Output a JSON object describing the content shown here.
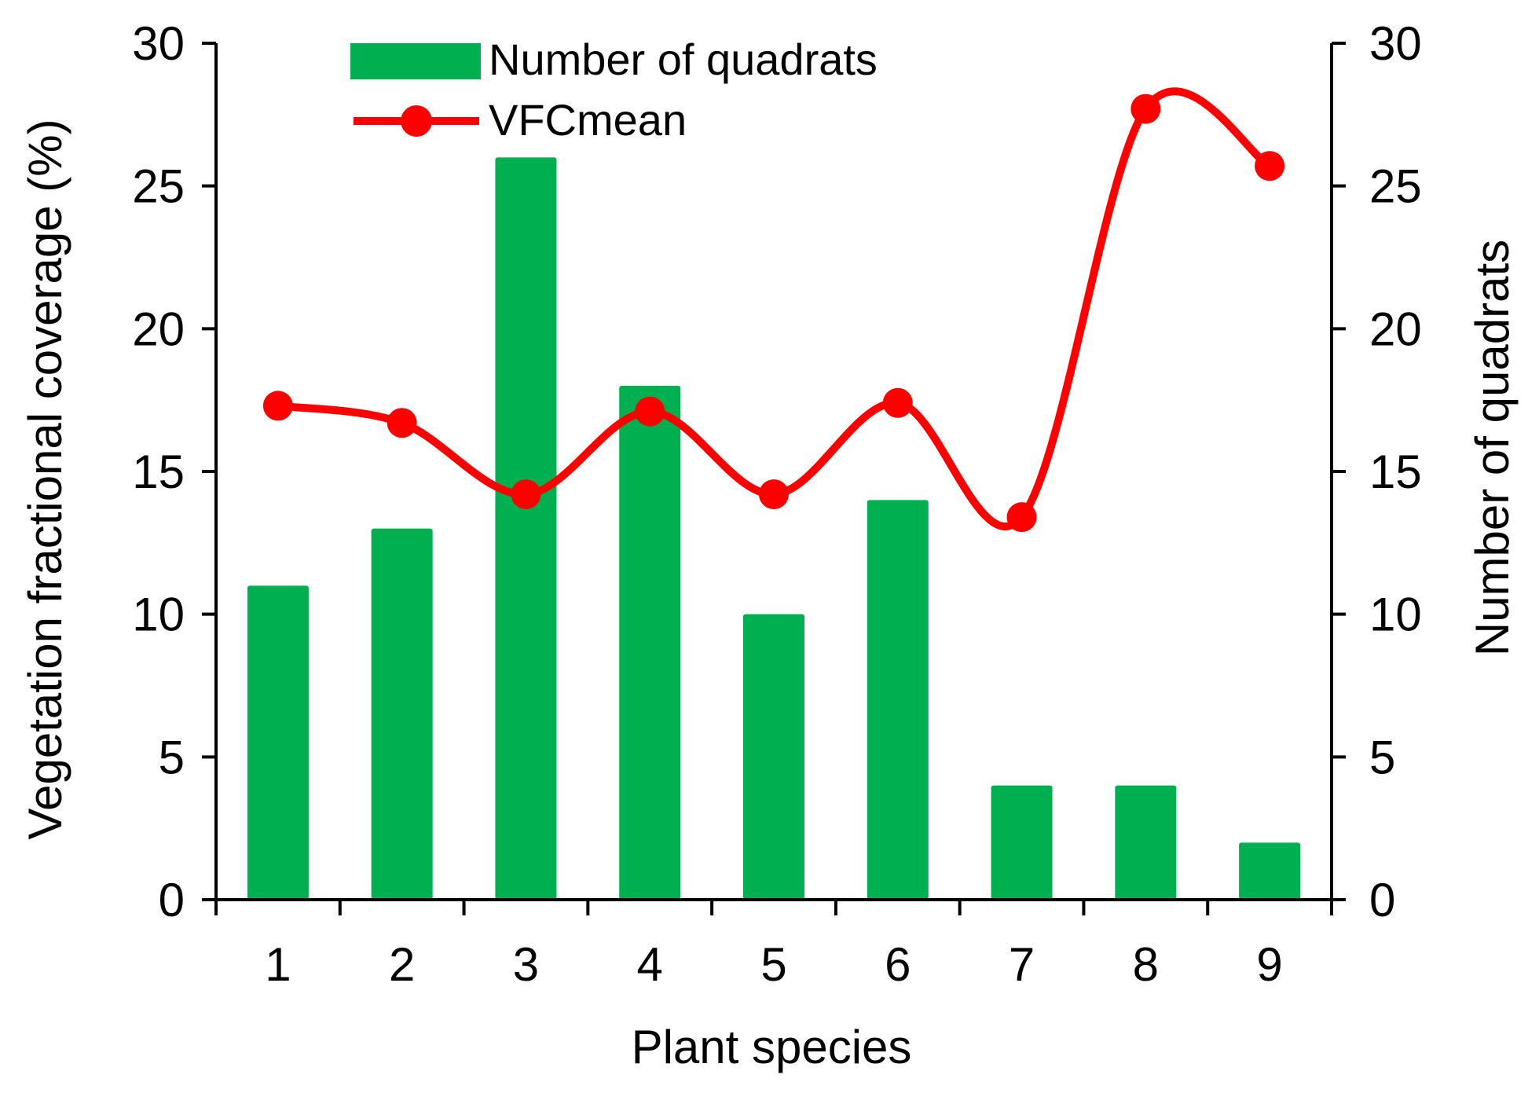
{
  "chart_data": {
    "type": "bar",
    "categories": [
      "1",
      "2",
      "3",
      "4",
      "5",
      "6",
      "7",
      "8",
      "9"
    ],
    "xlabel": "Plant species",
    "ylabel": "Vegetation fractional coverage (%)",
    "y2label": "Number of quadrats",
    "ylim": [
      0,
      30
    ],
    "y2lim": [
      0,
      30
    ],
    "yticks": [
      "0",
      "5",
      "10",
      "15",
      "20",
      "25",
      "30"
    ],
    "y2ticks": [
      "0",
      "5",
      "10",
      "15",
      "20",
      "25",
      "30"
    ],
    "series": [
      {
        "name": "Number of quadrats",
        "type": "bar",
        "axis": "right",
        "color": "#00b050",
        "values": [
          11,
          13,
          26,
          18,
          10,
          14,
          4,
          4,
          2
        ]
      },
      {
        "name": "VFCmean",
        "type": "line",
        "smooth": true,
        "axis": "left",
        "color": "#ff0000",
        "values": [
          17.3,
          16.7,
          14.2,
          17.1,
          14.2,
          17.4,
          13.4,
          27.7,
          25.7
        ]
      }
    ],
    "legend": "top-center",
    "grid": false
  }
}
